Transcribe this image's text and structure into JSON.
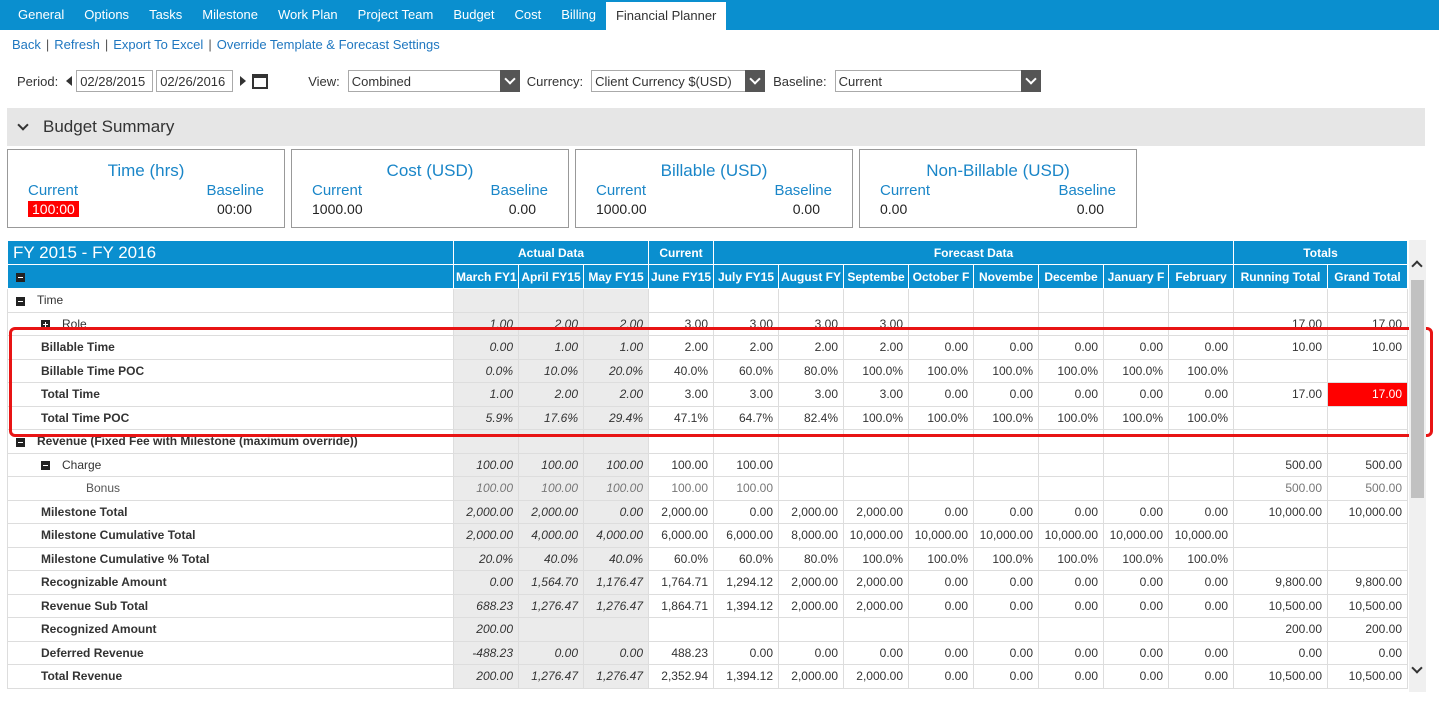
{
  "nav": {
    "tabs": [
      "General",
      "Options",
      "Tasks",
      "Milestone",
      "Work Plan",
      "Project Team",
      "Budget",
      "Cost",
      "Billing",
      "Financial Planner"
    ],
    "active": "Financial Planner"
  },
  "links": [
    "Back",
    "Refresh",
    "Export To Excel",
    "Override Template & Forecast Settings"
  ],
  "filters": {
    "period_label": "Period:",
    "start": "02/28/2015",
    "end": "02/26/2016",
    "view_label": "View:",
    "view": "Combined",
    "currency_label": "Currency:",
    "currency": "Client Currency $(USD)",
    "baseline_label": "Baseline:",
    "baseline": "Current"
  },
  "section": {
    "title": "Budget Summary"
  },
  "cards": [
    {
      "title": "Time (hrs)",
      "current_label": "Current",
      "baseline_label": "Baseline",
      "current": "100:00",
      "baseline": "00:00"
    },
    {
      "title": "Cost (USD)",
      "current_label": "Current",
      "baseline_label": "Baseline",
      "current": "1000.00",
      "baseline": "0.00"
    },
    {
      "title": "Billable (USD)",
      "current_label": "Current",
      "baseline_label": "Baseline",
      "current": "1000.00",
      "baseline": "0.00"
    },
    {
      "title": "Non-Billable (USD)",
      "current_label": "Current",
      "baseline_label": "Baseline",
      "current": "0.00",
      "baseline": "0.00"
    }
  ],
  "grid": {
    "fy_title": "FY 2015 - FY 2016",
    "groups": {
      "actual": "Actual Data",
      "current": "Current",
      "forecast": "Forecast Data",
      "totals": "Totals"
    },
    "columns": [
      "March FY1",
      "April FY15",
      "May FY15",
      "June FY15",
      "July FY15",
      "August FY",
      "Septembe",
      "October F",
      "Novembe",
      "Decembe",
      "January F",
      "February",
      "Running Total",
      "Grand Total"
    ],
    "rows": [
      {
        "label": "Time",
        "style": "l1",
        "icon": "minus",
        "values": [
          "",
          "",
          "",
          "",
          "",
          "",
          "",
          "",
          "",
          "",
          "",
          "",
          "",
          ""
        ]
      },
      {
        "label": "Role",
        "style": "l2",
        "icon": "plus",
        "values": [
          "1.00",
          "2.00",
          "2.00",
          "3.00",
          "3.00",
          "3.00",
          "3.00",
          "",
          "",
          "",
          "",
          "",
          "17.00",
          "17.00"
        ]
      },
      {
        "label": "Billable Time",
        "style": "b",
        "values": [
          "0.00",
          "1.00",
          "1.00",
          "2.00",
          "2.00",
          "2.00",
          "2.00",
          "0.00",
          "0.00",
          "0.00",
          "0.00",
          "0.00",
          "10.00",
          "10.00"
        ]
      },
      {
        "label": "Billable Time POC",
        "style": "b",
        "values": [
          "0.0%",
          "10.0%",
          "20.0%",
          "40.0%",
          "60.0%",
          "80.0%",
          "100.0%",
          "100.0%",
          "100.0%",
          "100.0%",
          "100.0%",
          "100.0%",
          "",
          ""
        ]
      },
      {
        "label": "Total Time",
        "style": "b",
        "values": [
          "1.00",
          "2.00",
          "2.00",
          "3.00",
          "3.00",
          "3.00",
          "3.00",
          "0.00",
          "0.00",
          "0.00",
          "0.00",
          "0.00",
          "17.00",
          "17.00"
        ]
      },
      {
        "label": "Total Time POC",
        "style": "b",
        "values": [
          "5.9%",
          "17.6%",
          "29.4%",
          "47.1%",
          "64.7%",
          "82.4%",
          "100.0%",
          "100.0%",
          "100.0%",
          "100.0%",
          "100.0%",
          "100.0%",
          "",
          ""
        ]
      },
      {
        "label": "Revenue (Fixed Fee with Milestone (maximum override))",
        "style": "b1",
        "icon": "minus",
        "values": [
          "",
          "",
          "",
          "",
          "",
          "",
          "",
          "",
          "",
          "",
          "",
          "",
          "",
          ""
        ]
      },
      {
        "label": "Charge",
        "style": "l2",
        "icon": "minus",
        "values": [
          "100.00",
          "100.00",
          "100.00",
          "100.00",
          "100.00",
          "",
          "",
          "",
          "",
          "",
          "",
          "",
          "500.00",
          "500.00"
        ]
      },
      {
        "label": "Bonus",
        "style": "l3",
        "values": [
          "100.00",
          "100.00",
          "100.00",
          "100.00",
          "100.00",
          "",
          "",
          "",
          "",
          "",
          "",
          "",
          "500.00",
          "500.00"
        ]
      },
      {
        "label": "Milestone Total",
        "style": "b",
        "values": [
          "2,000.00",
          "2,000.00",
          "0.00",
          "2,000.00",
          "0.00",
          "2,000.00",
          "2,000.00",
          "0.00",
          "0.00",
          "0.00",
          "0.00",
          "0.00",
          "10,000.00",
          "10,000.00"
        ]
      },
      {
        "label": "Milestone Cumulative Total",
        "style": "b",
        "values": [
          "2,000.00",
          "4,000.00",
          "4,000.00",
          "6,000.00",
          "6,000.00",
          "8,000.00",
          "10,000.00",
          "10,000.00",
          "10,000.00",
          "10,000.00",
          "10,000.00",
          "10,000.00",
          "",
          ""
        ]
      },
      {
        "label": "Milestone Cumulative % Total",
        "style": "b",
        "values": [
          "20.0%",
          "40.0%",
          "40.0%",
          "60.0%",
          "60.0%",
          "80.0%",
          "100.0%",
          "100.0%",
          "100.0%",
          "100.0%",
          "100.0%",
          "100.0%",
          "",
          ""
        ]
      },
      {
        "label": "Recognizable Amount",
        "style": "b",
        "values": [
          "0.00",
          "1,564.70",
          "1,176.47",
          "1,764.71",
          "1,294.12",
          "2,000.00",
          "2,000.00",
          "0.00",
          "0.00",
          "0.00",
          "0.00",
          "0.00",
          "9,800.00",
          "9,800.00"
        ]
      },
      {
        "label": "Revenue Sub Total",
        "style": "b",
        "values": [
          "688.23",
          "1,276.47",
          "1,276.47",
          "1,864.71",
          "1,394.12",
          "2,000.00",
          "2,000.00",
          "0.00",
          "0.00",
          "0.00",
          "0.00",
          "0.00",
          "10,500.00",
          "10,500.00"
        ]
      },
      {
        "label": "Recognized Amount",
        "style": "b",
        "values": [
          "200.00",
          "",
          "",
          "",
          "",
          "",
          "",
          "",
          "",
          "",
          "",
          "",
          "200.00",
          "200.00"
        ]
      },
      {
        "label": "Deferred Revenue",
        "style": "b",
        "values": [
          "-488.23",
          "0.00",
          "0.00",
          "488.23",
          "0.00",
          "0.00",
          "0.00",
          "0.00",
          "0.00",
          "0.00",
          "0.00",
          "0.00",
          "0.00",
          "0.00"
        ]
      },
      {
        "label": "Total Revenue",
        "style": "b",
        "values": [
          "200.00",
          "1,276.47",
          "1,276.47",
          "2,352.94",
          "1,394.12",
          "2,000.00",
          "2,000.00",
          "0.00",
          "0.00",
          "0.00",
          "0.00",
          "0.00",
          "10,500.00",
          "10,500.00"
        ]
      }
    ]
  }
}
